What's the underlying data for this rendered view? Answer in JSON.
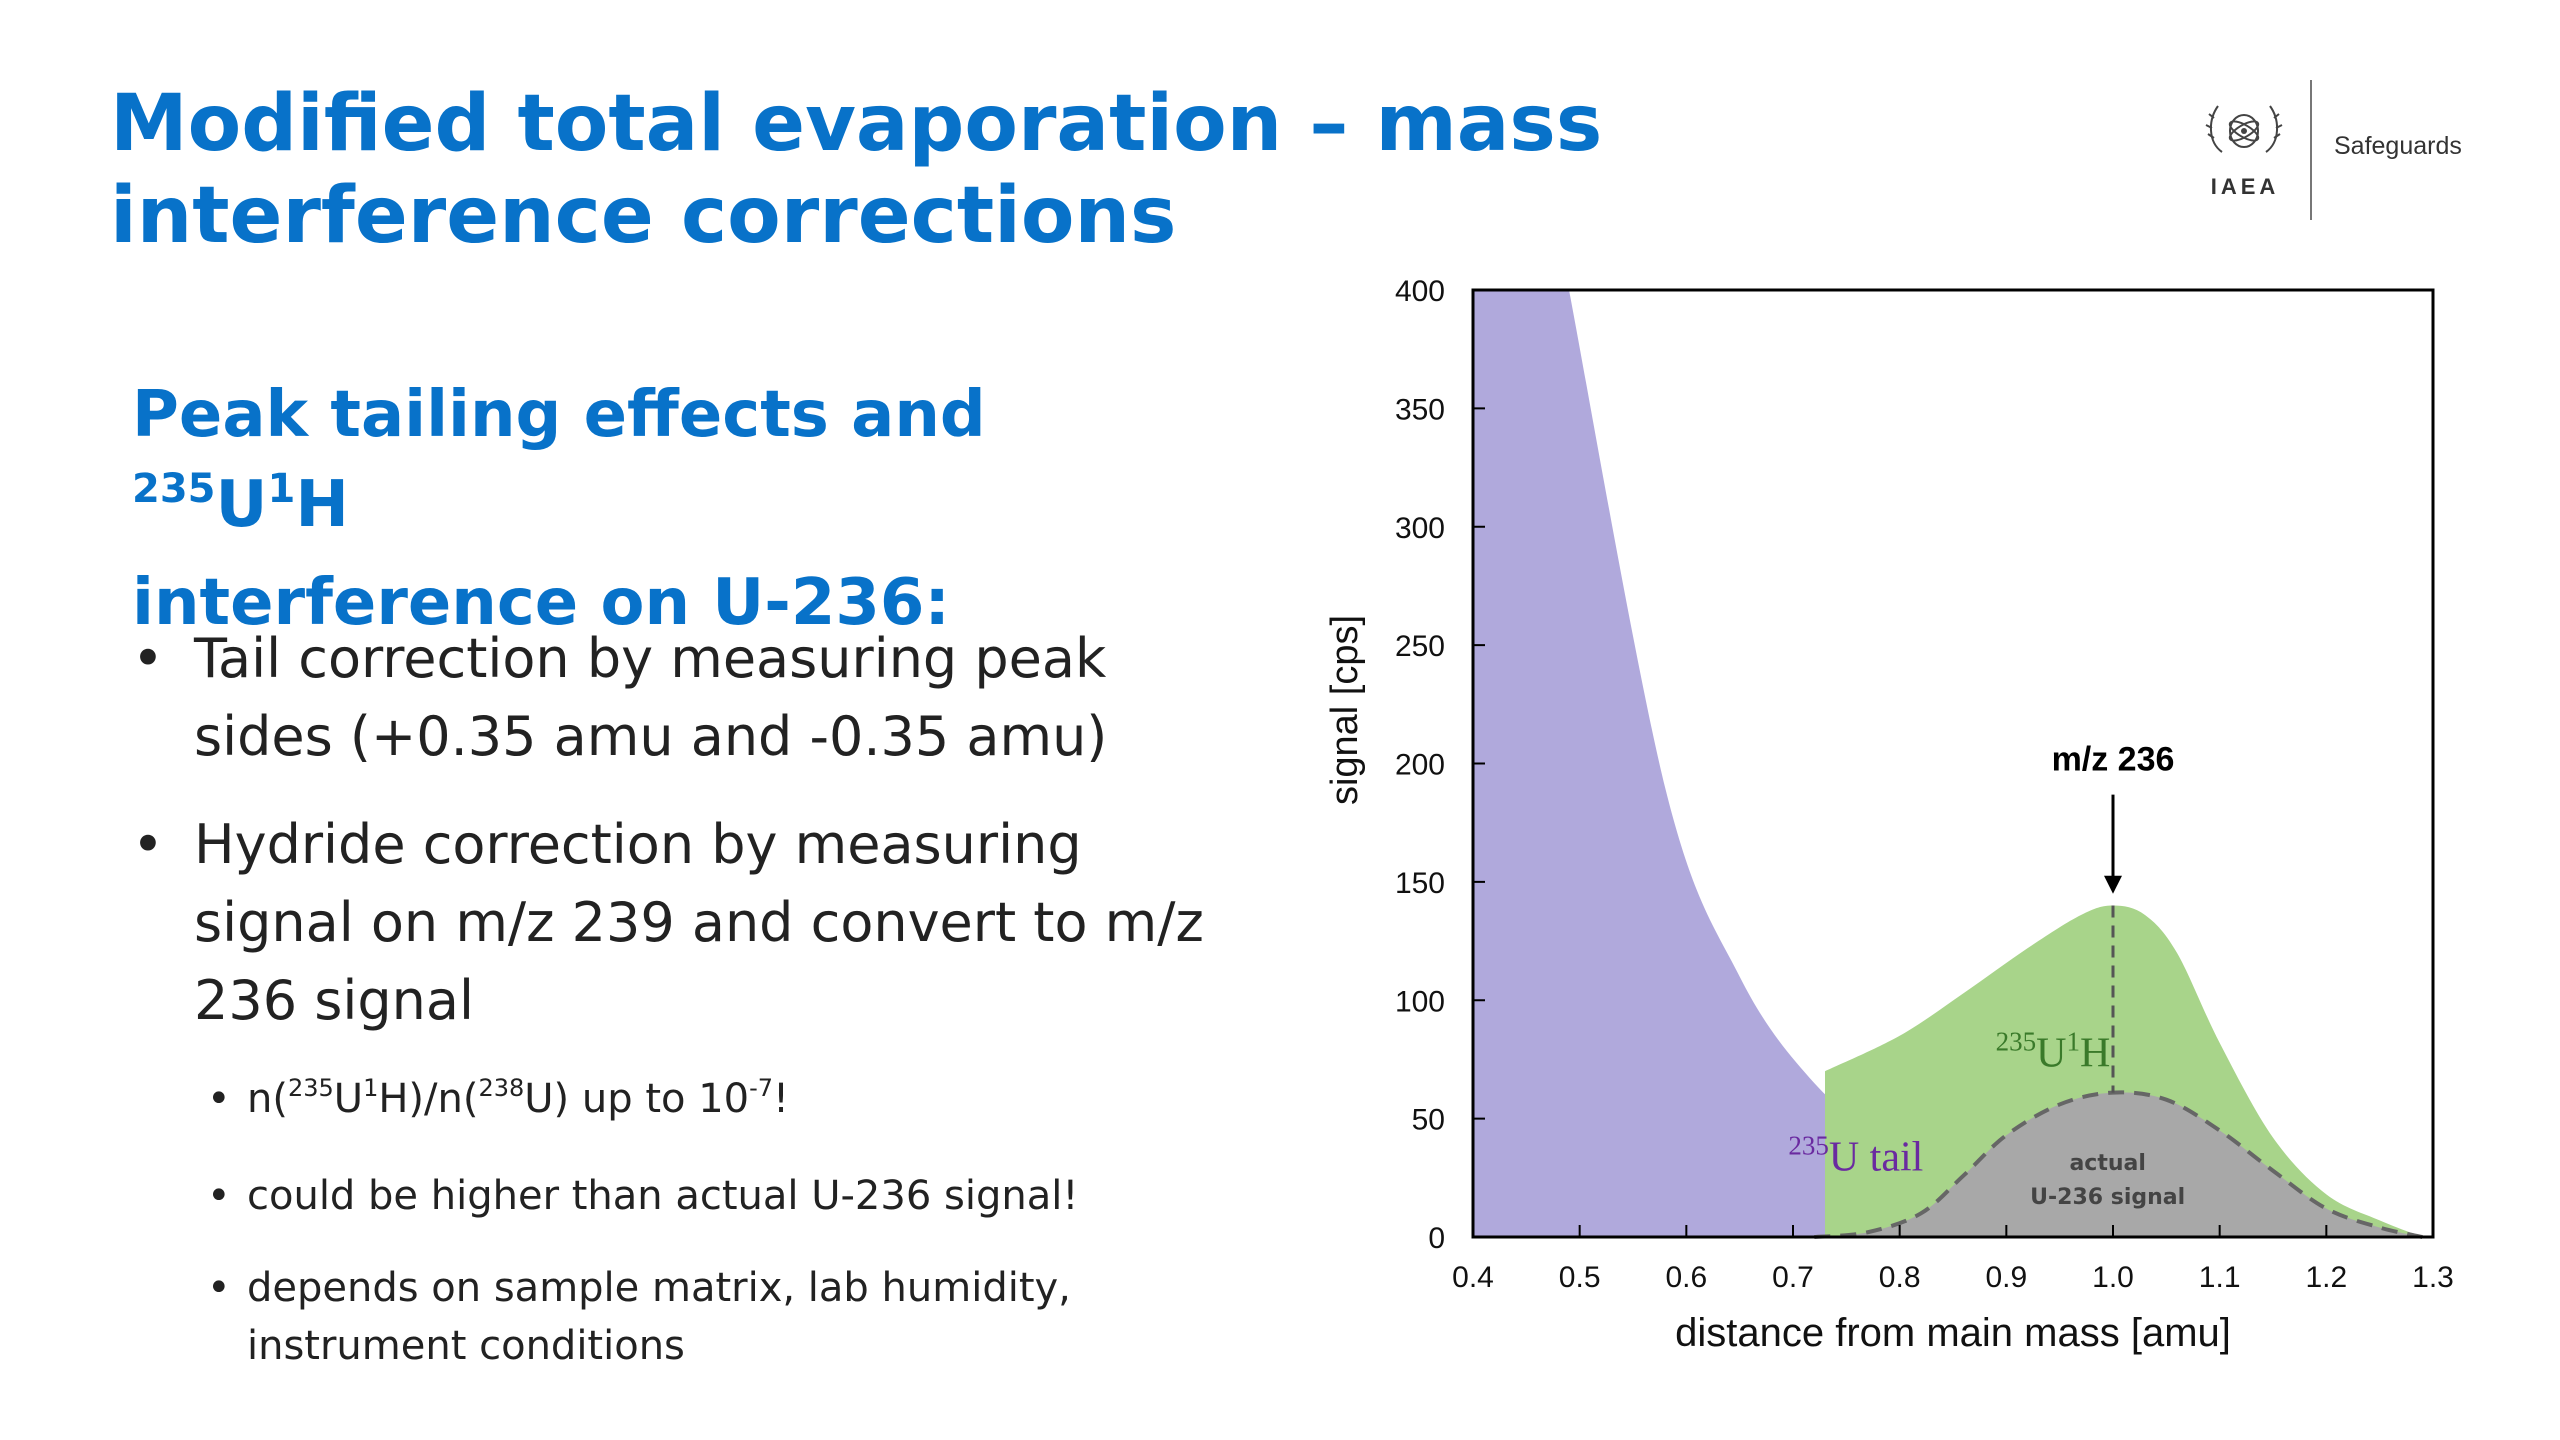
{
  "title": "Modified total evaporation – mass interference corrections",
  "logo": {
    "name": "IAEA",
    "department": "Safeguards"
  },
  "subheading": {
    "prefix": "Peak tailing effects and ",
    "sup1": "235",
    "mid": "U",
    "sup2": "1",
    "end": "H",
    "line2": "interference on U-236:"
  },
  "bullets": {
    "b1": "Tail correction by measuring peak sides (+0.35 amu and -0.35 amu)",
    "b2": "Hydride correction by measuring signal on m/z 239 and convert to m/z 236 signal",
    "s1": {
      "t1": "n(",
      "s1": "235",
      "t2": "U",
      "s2": "1",
      "t3": "H)/n(",
      "s3": "238",
      "t4": "U) up to 10",
      "s4": "-7",
      "t5": "!"
    },
    "s2": "could be higher than actual U-236 signal!",
    "s3": "depends on sample matrix, lab humidity, instrument conditions"
  },
  "chart_data": {
    "type": "area",
    "xlabel": "distance from main mass [amu]",
    "ylabel": "signal [cps]",
    "xlim": [
      0.4,
      1.3
    ],
    "ylim": [
      0,
      400
    ],
    "xticks": [
      "0.4",
      "0.5",
      "0.6",
      "0.7",
      "0.8",
      "0.9",
      "1.0",
      "1.1",
      "1.2",
      "1.3"
    ],
    "yticks": [
      "0",
      "50",
      "100",
      "150",
      "200",
      "250",
      "300",
      "350",
      "400"
    ],
    "colors": {
      "tail": "#b0a9dc",
      "hydride": "#a8d48a",
      "actual": "#a8a8a8",
      "tail_text": "#6a2aa0",
      "hydride_text": "#3a7a2a"
    },
    "series": [
      {
        "name": "235U tail",
        "x": [
          0.4,
          0.49,
          0.58,
          0.65,
          0.72,
          0.8,
          0.87,
          0.92,
          1.0
        ],
        "y": [
          400,
          400,
          190,
          110,
          65,
          35,
          15,
          5,
          0
        ]
      },
      {
        "name": "235U1H",
        "x": [
          0.73,
          0.8,
          0.86,
          0.92,
          0.97,
          1.0,
          1.03,
          1.06,
          1.1,
          1.15,
          1.2,
          1.25,
          1.29
        ],
        "y": [
          70,
          85,
          103,
          122,
          136,
          140,
          136,
          120,
          82,
          42,
          18,
          7,
          0
        ]
      },
      {
        "name": "actual U-236 signal",
        "x": [
          0.72,
          0.77,
          0.82,
          0.86,
          0.9,
          0.95,
          1.0,
          1.05,
          1.1,
          1.15,
          1.2,
          1.25,
          1.29
        ],
        "y": [
          0,
          2,
          10,
          26,
          43,
          56,
          61,
          58,
          45,
          28,
          12,
          4,
          0
        ]
      }
    ],
    "annotations": [
      {
        "text": "m/z 236",
        "x": 1.0,
        "y": 197,
        "arrow_to_y": 145
      },
      {
        "text_sup": "235",
        "text": "U tail",
        "x": 0.78,
        "y": 28
      },
      {
        "text_sup1": "235",
        "text_mid": "U",
        "text_sup2": "1",
        "text": "H",
        "x": 0.89,
        "y": 72
      },
      {
        "text": "actual",
        "line2": "U-236 signal",
        "x": 0.995,
        "y": 25
      }
    ],
    "peak_marker_x": 1.0,
    "grid": false
  }
}
